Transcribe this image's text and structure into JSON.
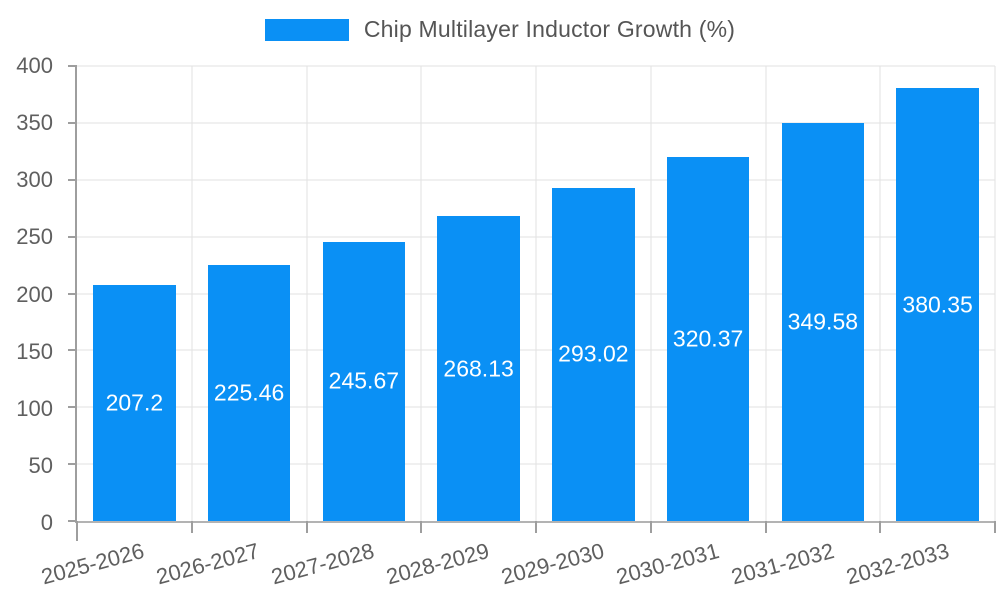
{
  "legend": {
    "label": "Chip Multilayer Inductor Growth (%)"
  },
  "chart_data": {
    "type": "bar",
    "title": "Chip Multilayer Inductor Growth (%)",
    "categories": [
      "2025-2026",
      "2026-2027",
      "2027-2028",
      "2028-2029",
      "2029-2030",
      "2030-2031",
      "2031-2032",
      "2032-2033"
    ],
    "values": [
      207.2,
      225.46,
      245.67,
      268.13,
      293.02,
      320.37,
      349.58,
      380.35
    ],
    "bar_labels": [
      "207.2",
      "225.46",
      "245.67",
      "268.13",
      "293.02",
      "320.37",
      "349.58",
      "380.35"
    ],
    "xlabel": "",
    "ylabel": "",
    "ylim": [
      0,
      400
    ],
    "yticks": [
      0,
      50,
      100,
      150,
      200,
      250,
      300,
      350,
      400
    ],
    "grid": true,
    "legend_position": "top"
  },
  "colors": {
    "bar": "#0a90f5",
    "grid": "#e2e2e2",
    "axis": "#9e9e9e",
    "axis_bottom": "#b3b3b3",
    "tick_text": "#5f5f5f",
    "bar_label": "#ffffff"
  }
}
